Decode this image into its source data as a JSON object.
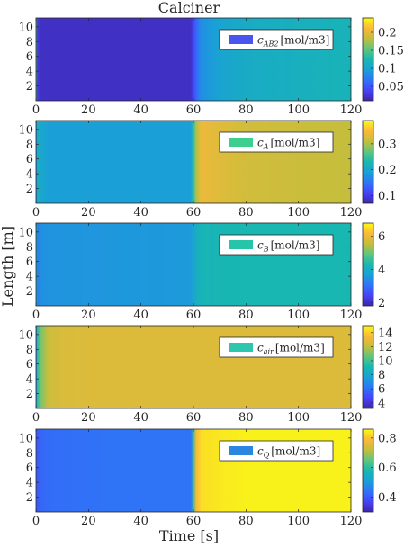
{
  "chart_data": {
    "type": "heatmap",
    "title": "Calciner",
    "xlabel": "Time [s]",
    "ylabel": "Length [m]",
    "xlim": [
      0,
      120
    ],
    "ylim": [
      0,
      11.2
    ],
    "x_ticks": [
      0,
      20,
      40,
      60,
      80,
      100,
      120
    ],
    "y_ticks": [
      2,
      4,
      6,
      8,
      10
    ],
    "colormap": "parula",
    "colormap_stops": [
      "#3e26a8",
      "#4743f8",
      "#2f74f7",
      "#1aa0d6",
      "#18b7b1",
      "#5fc67e",
      "#c4be3c",
      "#fbb83a",
      "#f9fb15"
    ],
    "panels": [
      {
        "legend": {
          "symbol": "c",
          "subscript": "AB2",
          "unit": "[mol/m3]",
          "color": "#4a55f0"
        },
        "clim": [
          0.01,
          0.24
        ],
        "cbar_ticks": [
          0.05,
          0.1,
          0.15,
          0.2
        ],
        "cbar_tick_labels": [
          "0.05",
          "0.1",
          "0.15",
          "0.2"
        ],
        "profile_t": [
          0,
          0.5,
          2,
          5,
          20,
          40,
          59,
          61,
          63,
          70,
          80,
          120
        ],
        "profile_v": [
          0.15,
          0.03,
          0.02,
          0.02,
          0.02,
          0.02,
          0.02,
          0.06,
          0.085,
          0.1,
          0.11,
          0.12
        ]
      },
      {
        "legend": {
          "symbol": "c",
          "subscript": "A",
          "unit": "[mol/m3]",
          "color": "#3ccf8e"
        },
        "clim": [
          0.07,
          0.39
        ],
        "cbar_ticks": [
          0.1,
          0.2,
          0.3
        ],
        "cbar_tick_labels": [
          "0.1",
          "0.2",
          "0.3"
        ],
        "profile_t": [
          0,
          0.5,
          2,
          5,
          30,
          59,
          61,
          63,
          70,
          80,
          120
        ],
        "profile_v": [
          0.15,
          0.22,
          0.2,
          0.19,
          0.19,
          0.19,
          0.3,
          0.34,
          0.33,
          0.32,
          0.31
        ]
      },
      {
        "legend": {
          "symbol": "c",
          "subscript": "B",
          "unit": "[mol/m3]",
          "color": "#26c4a9"
        },
        "clim": [
          1.8,
          6.8
        ],
        "cbar_ticks": [
          2,
          4,
          6
        ],
        "cbar_tick_labels": [
          "2",
          "4",
          "6"
        ],
        "profile_t": [
          0,
          0.5,
          2,
          5,
          30,
          59,
          61,
          63,
          70,
          80,
          120
        ],
        "profile_v": [
          4.4,
          3.2,
          3.45,
          3.5,
          3.55,
          3.6,
          4.0,
          4.2,
          4.25,
          4.3,
          4.3
        ]
      },
      {
        "legend": {
          "symbol": "c",
          "subscript": "air",
          "unit": "[mol/m3]",
          "color": "#2ec6ad"
        },
        "clim": [
          3.2,
          15.0
        ],
        "cbar_ticks": [
          4,
          6,
          8,
          10,
          12,
          14
        ],
        "cbar_tick_labels": [
          "4",
          "6",
          "8",
          "10",
          "12",
          "14"
        ],
        "profile_t": [
          0,
          0.5,
          2,
          5,
          10,
          20,
          120
        ],
        "profile_v": [
          6,
          9.5,
          11,
          12.3,
          12.6,
          12.7,
          12.7
        ]
      },
      {
        "legend": {
          "symbol": "c",
          "subscript": "Q",
          "unit": "[mol/m3]",
          "color": "#2b86e0"
        },
        "clim": [
          0.3,
          0.86
        ],
        "cbar_ticks": [
          0.4,
          0.6,
          0.8
        ],
        "cbar_tick_labels": [
          "0.4",
          "0.6",
          "0.8"
        ],
        "profile_t": [
          0,
          0.5,
          2,
          5,
          30,
          59,
          61,
          63,
          70,
          80,
          120
        ],
        "profile_v": [
          0.42,
          0.4,
          0.42,
          0.43,
          0.44,
          0.44,
          0.78,
          0.83,
          0.84,
          0.85,
          0.85
        ]
      }
    ]
  }
}
